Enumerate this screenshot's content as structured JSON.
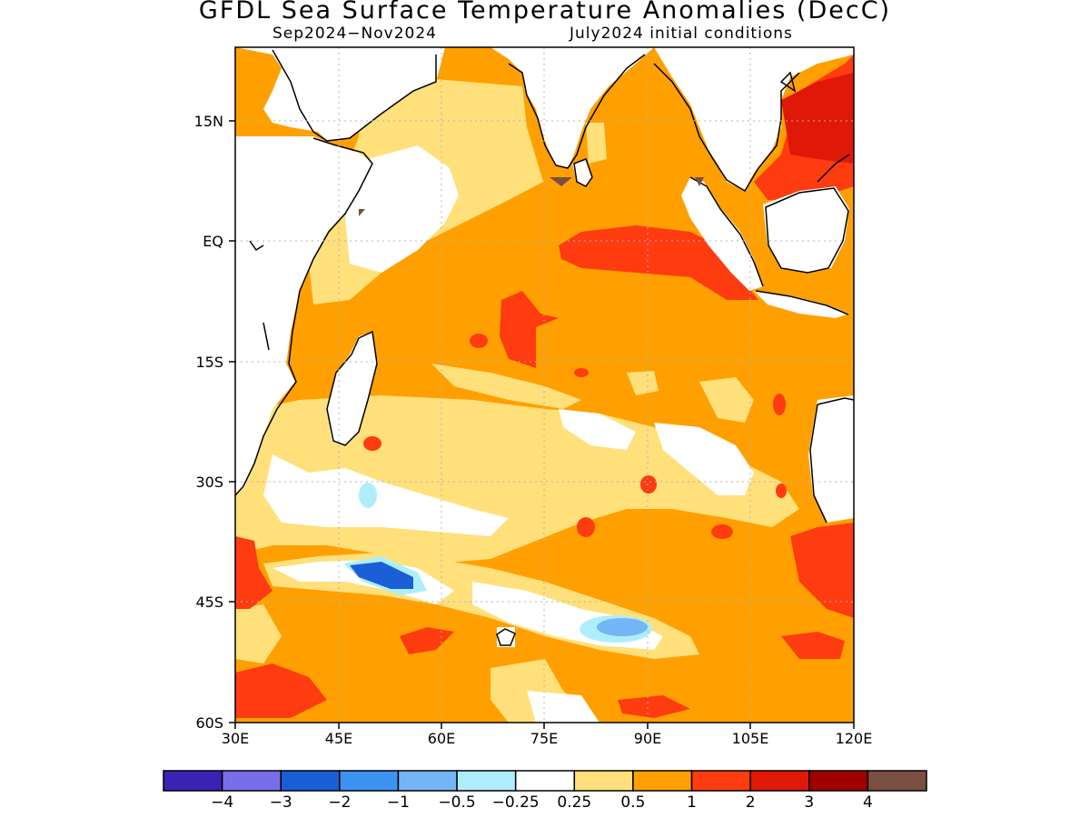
{
  "title": "GFDL Sea Surface Temperature Anomalies (DecC)",
  "subtitle_left": "Sep2024−Nov2024",
  "subtitle_right": "July2024 initial conditions",
  "map": {
    "lon_range": [
      30,
      120
    ],
    "lat_range": [
      -60,
      24
    ],
    "lon_ticks": [
      "30E",
      "45E",
      "60E",
      "75E",
      "90E",
      "105E",
      "120E"
    ],
    "lat_ticks": [
      "15N",
      "EQ",
      "15S",
      "30S",
      "45S",
      "60S"
    ],
    "gridlines": "dotted"
  },
  "legend": {
    "labels": [
      "−4",
      "−3",
      "−2",
      "−1",
      "−0.5",
      "−0.25",
      "0.25",
      "0.5",
      "1",
      "2",
      "3",
      "4"
    ],
    "colors": [
      "#3a22b5",
      "#7a6ee8",
      "#1a5fd6",
      "#3d93f2",
      "#74b6f5",
      "#aeeefa",
      "#ffffff",
      "#ffe07a",
      "#ffa000",
      "#ff3b10",
      "#e01808",
      "#a10000",
      "#7a4e40"
    ]
  },
  "colors": {
    "land": "#ffffff",
    "coast": "#000000",
    "grid": "#b4b4b4"
  }
}
